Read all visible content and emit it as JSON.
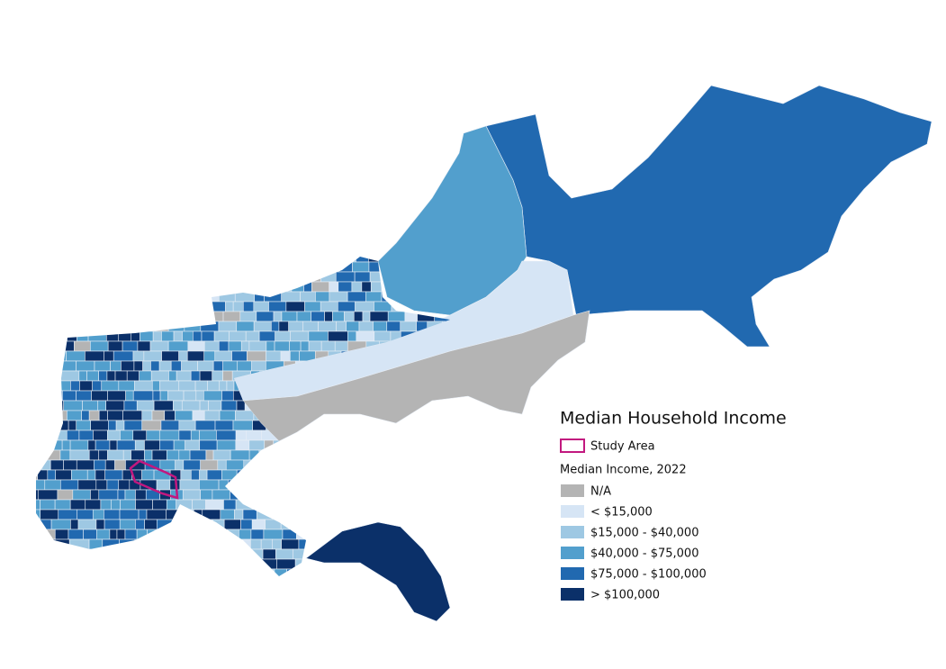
{
  "title": "Median Household Income",
  "legend": {
    "study_area": {
      "label": "Study Area",
      "color": "#c2187f"
    },
    "subtitle": "Median Income, 2022",
    "classes": [
      {
        "label": "N/A",
        "color": "#b4b4b4"
      },
      {
        "label": "< $15,000",
        "color": "#d6e5f5"
      },
      {
        "label": "$15,000 - $40,000",
        "color": "#9ec8e3"
      },
      {
        "label": "$40,000 - $75,000",
        "color": "#529fcd"
      },
      {
        "label": "$75,000 - $100,000",
        "color": "#2169b0"
      },
      {
        "label": "> $100,000",
        "color": "#0b3069"
      }
    ]
  }
}
